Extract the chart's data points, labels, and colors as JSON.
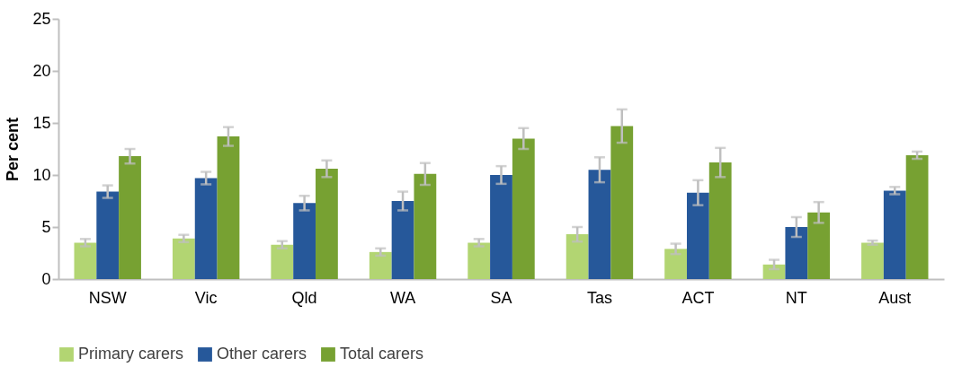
{
  "chart_data": {
    "type": "bar",
    "ylabel": "Per cent",
    "categories": [
      "NSW",
      "Vic",
      "Qld",
      "WA",
      "SA",
      "Tas",
      "ACT",
      "NT",
      "Aust"
    ],
    "series": [
      {
        "name": "Primary carers",
        "color": "#b2d572",
        "values": [
          3.5,
          3.9,
          3.3,
          2.6,
          3.5,
          4.3,
          2.9,
          1.4,
          3.5
        ],
        "errors": [
          0.35,
          0.35,
          0.35,
          0.35,
          0.35,
          0.7,
          0.5,
          0.45,
          0.2
        ]
      },
      {
        "name": "Other carers",
        "color": "#26589a",
        "values": [
          8.4,
          9.7,
          7.3,
          7.5,
          10.0,
          10.5,
          8.3,
          5.0,
          8.5
        ],
        "errors": [
          0.6,
          0.6,
          0.7,
          0.9,
          0.85,
          1.2,
          1.2,
          0.95,
          0.35
        ]
      },
      {
        "name": "Total carers",
        "color": "#77a132",
        "values": [
          11.8,
          13.7,
          10.6,
          10.1,
          13.5,
          14.7,
          11.2,
          6.4,
          11.9
        ],
        "errors": [
          0.7,
          0.9,
          0.8,
          1.05,
          1.0,
          1.6,
          1.4,
          1.0,
          0.35
        ]
      }
    ],
    "ylim": [
      0,
      25
    ],
    "yticks": [
      0,
      5,
      10,
      15,
      20,
      25
    ],
    "grid": false,
    "legend": "bottom"
  }
}
